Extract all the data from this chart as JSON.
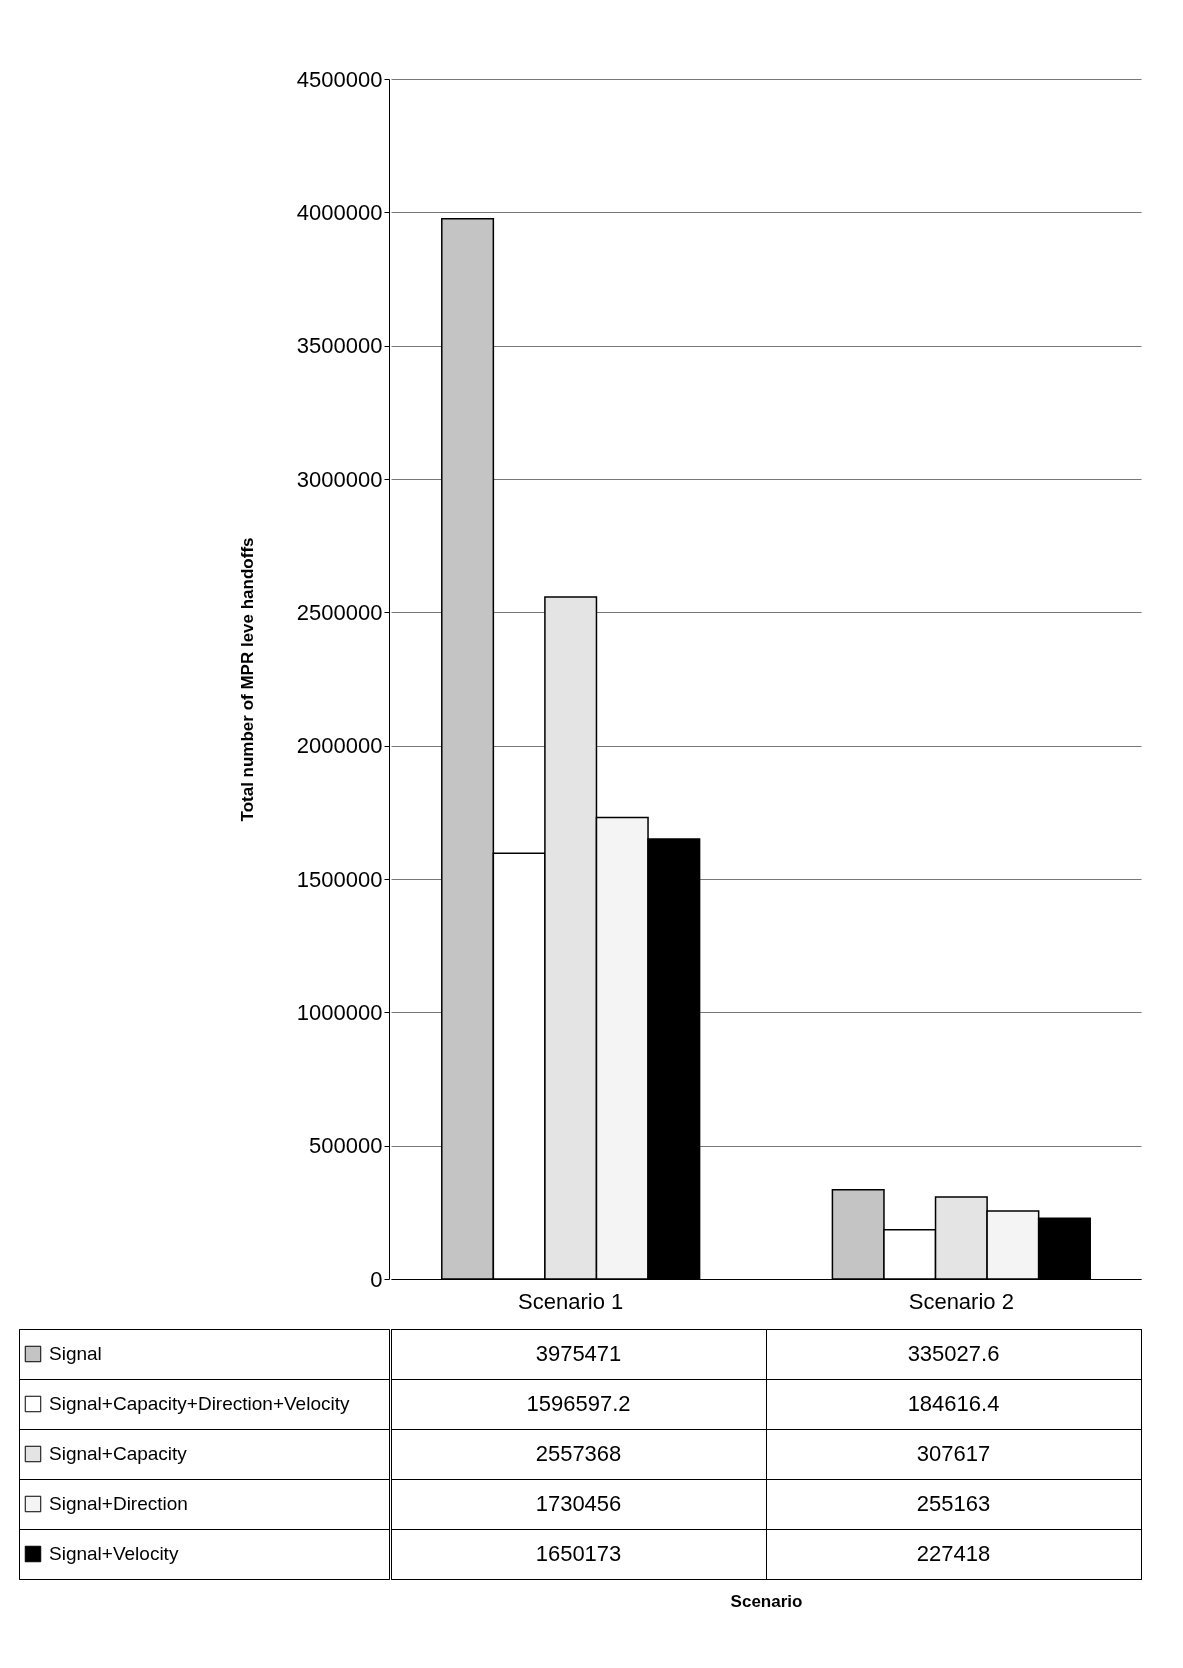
{
  "chart_data": {
    "type": "bar",
    "annotations": [
      "Scenario"
    ],
    "ylabel": "Total number of MPR leve handoffs",
    "categories": [
      "Scenario 1",
      "Scenario 2"
    ],
    "series": [
      {
        "name": "Signal",
        "color": "#c4c4c4",
        "values": [
          3975471,
          335027.6
        ]
      },
      {
        "name": "Signal+Capacity+Direction+Velocity",
        "color": "#ffffff",
        "values": [
          1596597.2,
          184616.4
        ]
      },
      {
        "name": "Signal+Capacity",
        "color": "#e4e4e4",
        "values": [
          2557368,
          307617
        ]
      },
      {
        "name": "Signal+Direction",
        "color": "#f4f4f4",
        "values": [
          1730456,
          255163
        ]
      },
      {
        "name": "Signal+Velocity",
        "color": "#000000",
        "values": [
          1650173,
          227418
        ]
      }
    ],
    "ylim": [
      0,
      4500000
    ],
    "yticks": [
      0,
      500000,
      1000000,
      1500000,
      2000000,
      2500000,
      3000000,
      3500000,
      4000000,
      4500000
    ],
    "grid": "y",
    "legend": "bottom",
    "data_labels": true
  }
}
